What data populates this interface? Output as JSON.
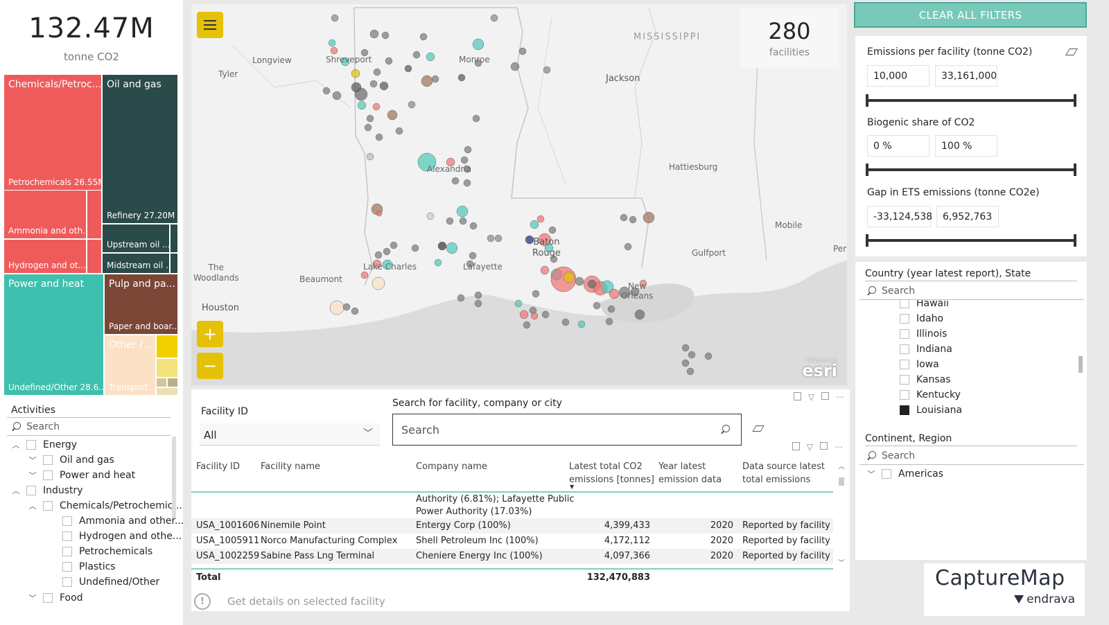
{
  "kpi": {
    "value": "132.47M",
    "unit": "tonne CO2"
  },
  "treemap": {
    "chem_header": "Chemicals/Petroc...",
    "petro_label": "Petrochemicals 26.55M",
    "ammonia_label": "Ammonia and oth...",
    "hydrogen_label": "Hydrogen and ot...",
    "oil_header": "Oil and gas",
    "refinery_label": "Refinery 27.20M",
    "upstream_label": "Upstream oil ...",
    "midstream_label": "Midstream oil ...",
    "power_header": "Power and heat",
    "undefined_label": "Undefined/Other 28.6...",
    "pulp_header": "Pulp and pa...",
    "paper_label": "Paper and boar...",
    "other_label": "Other / ...",
    "transport_label": "Transport...",
    "colors": {
      "chem": "#ef5b5b",
      "oil": "#2b4a4a",
      "power": "#3fbfae",
      "pulp": "#7b4636",
      "other": "#fbe1c5",
      "yellow": "#f2d000"
    }
  },
  "activities": {
    "title": "Activities",
    "search_placeholder": "Search",
    "items": [
      {
        "label": "Energy",
        "chev": "︿",
        "checked": false
      },
      {
        "label": "Oil and gas",
        "chev": "﹀",
        "checked": false
      },
      {
        "label": "Power and heat",
        "chev": "﹀",
        "checked": false
      },
      {
        "label": "Industry",
        "chev": "︿",
        "checked": false
      },
      {
        "label": "Chemicals/Petrochemic...",
        "chev": "︿",
        "checked": false
      },
      {
        "label": "Ammonia and other...",
        "chev": "",
        "checked": false
      },
      {
        "label": "Hydrogen and othe...",
        "chev": "",
        "checked": false
      },
      {
        "label": "Petrochemicals",
        "chev": "",
        "checked": false
      },
      {
        "label": "Plastics",
        "chev": "",
        "checked": false
      },
      {
        "label": "Undefined/Other",
        "chev": "",
        "checked": false
      },
      {
        "label": "Food",
        "chev": "﹀",
        "checked": false
      }
    ]
  },
  "map": {
    "facility_count": "280",
    "facility_label": "facilities",
    "zoom_in": "+",
    "zoom_out": "−",
    "labels": {
      "mississippi": "MISSISSIPPI",
      "longview": "Longview",
      "tyler": "Tyler",
      "shreveport": "Shreveport",
      "monroe": "Monroe",
      "jackson": "Jackson",
      "alexandria": "Alexandria",
      "hattiesburg": "Hattiesburg",
      "mobile": "Mobile",
      "baton_rouge": "Baton\nRouge",
      "gulfport": "Gulfport",
      "pe": "Per",
      "woodlands": "The\nWoodlands",
      "beaumont": "Beaumont",
      "lake_charles": "Lake Charles",
      "lafayette": "Lafayette",
      "houston": "Houston",
      "new_orleans": "New\nOrleans"
    },
    "esri": "esri",
    "powered": "POWERED BY"
  },
  "clear_filters": "CLEAR ALL FILTERS",
  "filters": {
    "emissions": {
      "title": "Emissions per facility (tonne CO2)",
      "min": "10,000",
      "max": "33,161,000"
    },
    "biogenic": {
      "title": "Biogenic share of CO2",
      "min": "0 %",
      "max": "100 %"
    },
    "gap": {
      "title": "Gap in ETS emissions (tonne CO2e)",
      "min": "-33,124,538",
      "max": "6,952,763"
    }
  },
  "country": {
    "title": "Country (year latest report), State",
    "search_placeholder": "Search",
    "items": [
      {
        "label": "Hawaii",
        "checked": false
      },
      {
        "label": "Idaho",
        "checked": false
      },
      {
        "label": "Illinois",
        "checked": false
      },
      {
        "label": "Indiana",
        "checked": false
      },
      {
        "label": "Iowa",
        "checked": false
      },
      {
        "label": "Kansas",
        "checked": false
      },
      {
        "label": "Kentucky",
        "checked": false
      },
      {
        "label": "Louisiana",
        "checked": true
      }
    ]
  },
  "continent": {
    "title": "Continent, Region",
    "search_placeholder": "Search",
    "items": [
      {
        "label": "Americas",
        "chev": "﹀",
        "checked": false
      }
    ]
  },
  "facility_filter": {
    "label": "Facility ID",
    "value": "All"
  },
  "facility_search": {
    "label": "Search for facility, company or city",
    "placeholder": "Search"
  },
  "table": {
    "headers": [
      "Facility ID",
      "Facility name",
      "Company name",
      "Latest total CO2\nemissions [tonnes]",
      "Year latest\nemission data",
      "Data source latest\ntotal emissions"
    ],
    "partial_row": "Authority (6.81%); Lafayette Public\nPower Authority (17.03%)",
    "rows": [
      [
        "USA_1001606",
        "Ninemile Point",
        "Entergy Corp (100%)",
        "4,399,433",
        "2020",
        "Reported by facility"
      ],
      [
        "USA_1005911",
        "Norco Manufacturing Complex",
        "Shell Petroleum Inc (100%)",
        "4,172,112",
        "2020",
        "Reported by facility"
      ],
      [
        "USA_1002259",
        "Sabine Pass Lng Terminal",
        "Cheniere Energy Inc (100%)",
        "4,097,366",
        "2020",
        "Reported by facility"
      ]
    ],
    "total_label": "Total",
    "total_value": "132,470,883"
  },
  "details": {
    "text": "Get details on selected facility"
  },
  "logo": {
    "name": "CaptureMap",
    "sub": "endrava"
  }
}
